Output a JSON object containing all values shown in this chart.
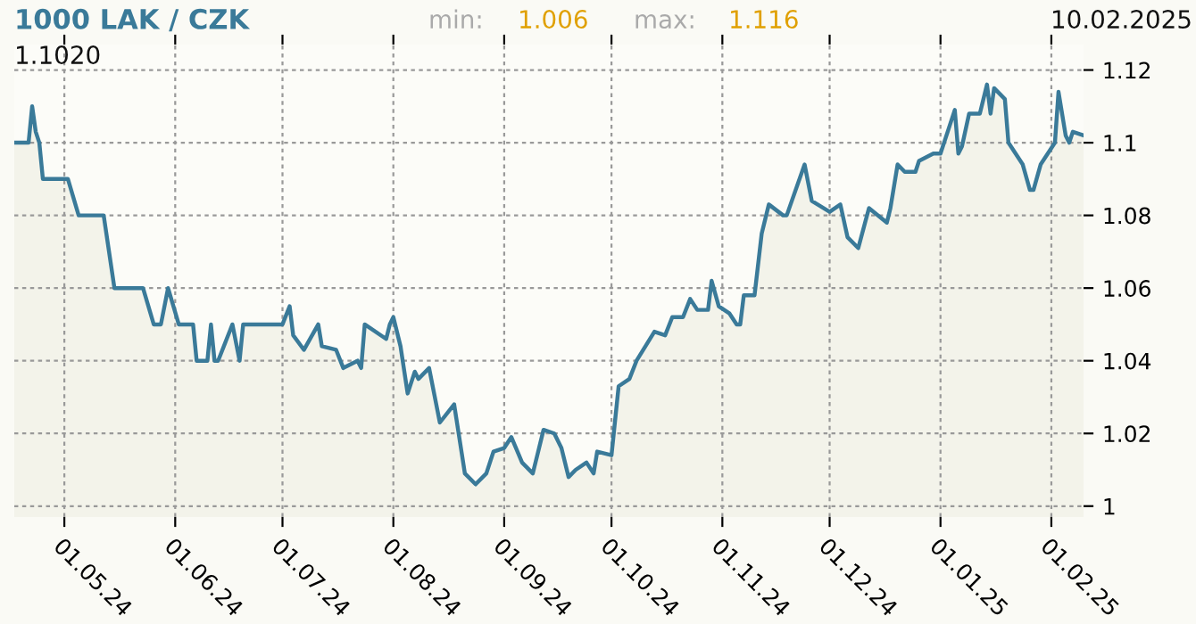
{
  "chart_data": {
    "type": "area",
    "title": "1000 LAK / CZK",
    "annotations": [
      "min:",
      "1.006",
      "max:",
      "1.116",
      "10.02.2025",
      "1.1020"
    ],
    "x": [
      "2024-04-17",
      "2024-04-21",
      "2024-04-22",
      "2024-04-23",
      "2024-04-24",
      "2024-04-25",
      "2024-05-02",
      "2024-05-05",
      "2024-05-12",
      "2024-05-15",
      "2024-05-23",
      "2024-05-26",
      "2024-05-28",
      "2024-05-30",
      "2024-06-02",
      "2024-06-06",
      "2024-06-07",
      "2024-06-10",
      "2024-06-11",
      "2024-06-12",
      "2024-06-13",
      "2024-06-17",
      "2024-06-19",
      "2024-06-20",
      "2024-07-01",
      "2024-07-03",
      "2024-07-04",
      "2024-07-07",
      "2024-07-11",
      "2024-07-12",
      "2024-07-16",
      "2024-07-18",
      "2024-07-22",
      "2024-07-23",
      "2024-07-24",
      "2024-07-30",
      "2024-07-31",
      "2024-08-01",
      "2024-08-03",
      "2024-08-05",
      "2024-08-07",
      "2024-08-08",
      "2024-08-11",
      "2024-08-14",
      "2024-08-18",
      "2024-08-21",
      "2024-08-24",
      "2024-08-27",
      "2024-08-29",
      "2024-09-01",
      "2024-09-03",
      "2024-09-06",
      "2024-09-09",
      "2024-09-12",
      "2024-09-15",
      "2024-09-17",
      "2024-09-19",
      "2024-09-21",
      "2024-09-24",
      "2024-09-26",
      "2024-09-27",
      "2024-10-01",
      "2024-10-03",
      "2024-10-06",
      "2024-10-08",
      "2024-10-13",
      "2024-10-16",
      "2024-10-18",
      "2024-10-21",
      "2024-10-23",
      "2024-10-25",
      "2024-10-28",
      "2024-10-29",
      "2024-10-31",
      "2024-11-03",
      "2024-11-05",
      "2024-11-06",
      "2024-11-07",
      "2024-11-10",
      "2024-11-12",
      "2024-11-14",
      "2024-11-18",
      "2024-11-19",
      "2024-11-24",
      "2024-11-26",
      "2024-12-01",
      "2024-12-04",
      "2024-12-06",
      "2024-12-09",
      "2024-12-12",
      "2024-12-17",
      "2024-12-18",
      "2024-12-20",
      "2024-12-22",
      "2024-12-25",
      "2024-12-26",
      "2024-12-30",
      "2025-01-01",
      "2025-01-03",
      "2025-01-05",
      "2025-01-06",
      "2025-01-07",
      "2025-01-09",
      "2025-01-12",
      "2025-01-14",
      "2025-01-15",
      "2025-01-16",
      "2025-01-19",
      "2025-01-20",
      "2025-01-22",
      "2025-01-24",
      "2025-01-26",
      "2025-01-27",
      "2025-01-29",
      "2025-02-02",
      "2025-02-03",
      "2025-02-05",
      "2025-02-06",
      "2025-02-07",
      "2025-02-10"
    ],
    "series": [
      {
        "color": "#3a7a99",
        "values": [
          1.1,
          1.1,
          1.11,
          1.103,
          1.1,
          1.09,
          1.09,
          1.08,
          1.08,
          1.06,
          1.06,
          1.05,
          1.05,
          1.06,
          1.05,
          1.05,
          1.04,
          1.04,
          1.05,
          1.04,
          1.04,
          1.05,
          1.04,
          1.05,
          1.05,
          1.055,
          1.047,
          1.043,
          1.05,
          1.044,
          1.043,
          1.038,
          1.04,
          1.038,
          1.05,
          1.046,
          1.05,
          1.052,
          1.044,
          1.031,
          1.037,
          1.035,
          1.038,
          1.023,
          1.028,
          1.009,
          1.006,
          1.009,
          1.015,
          1.016,
          1.019,
          1.012,
          1.009,
          1.021,
          1.02,
          1.016,
          1.008,
          1.01,
          1.012,
          1.009,
          1.015,
          1.014,
          1.033,
          1.035,
          1.04,
          1.048,
          1.047,
          1.052,
          1.052,
          1.057,
          1.054,
          1.054,
          1.062,
          1.055,
          1.053,
          1.05,
          1.05,
          1.058,
          1.058,
          1.075,
          1.083,
          1.08,
          1.08,
          1.094,
          1.084,
          1.081,
          1.083,
          1.074,
          1.071,
          1.082,
          1.078,
          1.082,
          1.094,
          1.092,
          1.092,
          1.095,
          1.097,
          1.097,
          1.103,
          1.109,
          1.097,
          1.099,
          1.108,
          1.108,
          1.116,
          1.108,
          1.115,
          1.112,
          1.1,
          1.097,
          1.094,
          1.087,
          1.087,
          1.094,
          1.1,
          1.114,
          1.102,
          1.1,
          1.103,
          1.102
        ]
      }
    ],
    "xlim": [
      "2024-04-17",
      "2025-02-10"
    ],
    "xticks": [
      {
        "value": "2024-05-01",
        "label": "01.05.24"
      },
      {
        "value": "2024-06-01",
        "label": "01.06.24"
      },
      {
        "value": "2024-07-01",
        "label": "01.07.24"
      },
      {
        "value": "2024-08-01",
        "label": "01.08.24"
      },
      {
        "value": "2024-09-01",
        "label": "01.09.24"
      },
      {
        "value": "2024-10-01",
        "label": "01.10.24"
      },
      {
        "value": "2024-11-01",
        "label": "01.11.24"
      },
      {
        "value": "2024-12-01",
        "label": "01.12.24"
      },
      {
        "value": "2025-01-01",
        "label": "01.01.25"
      },
      {
        "value": "2025-02-01",
        "label": "01.02.25"
      }
    ],
    "ylim": [
      0.997,
      1.127
    ],
    "yticks": [
      1,
      1.02,
      1.04,
      1.06,
      1.08,
      1.1,
      1.12
    ],
    "grid": true,
    "legend": false,
    "line_style": "solid",
    "marker": "none"
  }
}
